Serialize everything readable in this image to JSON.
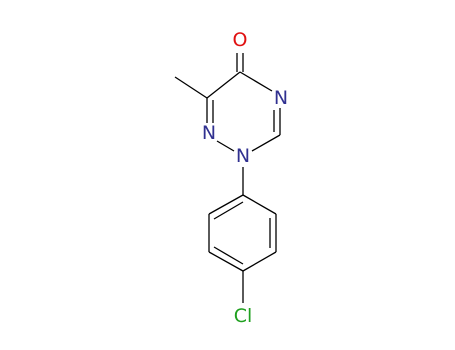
{
  "atoms": [
    "O",
    "N",
    "N",
    "N",
    "Cl"
  ]
}
